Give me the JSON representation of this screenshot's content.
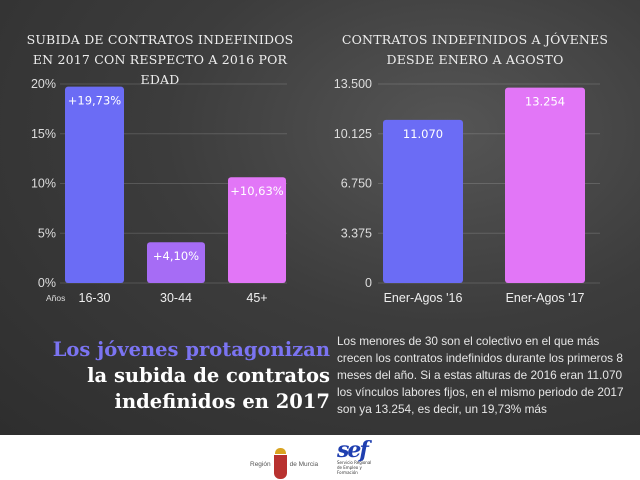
{
  "chart_data": [
    {
      "type": "bar",
      "title": "SUBIDA DE CONTRATOS INDEFINIDOS EN 2017 CON RESPECTO A 2016 POR EDAD",
      "xlabel": "Años",
      "ylabel": "",
      "categories": [
        "16-30",
        "30-44",
        "45+"
      ],
      "values": [
        19.73,
        4.1,
        10.63
      ],
      "data_labels": [
        "+19,73%",
        "+4,10%",
        "+10,63%"
      ],
      "colors": [
        "#6b6cf5",
        "#a66cf5",
        "#e276f7"
      ],
      "yticks": [
        "0%",
        "5%",
        "10%",
        "15%",
        "20%"
      ],
      "ytick_values": [
        0,
        5,
        10,
        15,
        20
      ],
      "ylim": [
        0,
        20
      ],
      "grid": true
    },
    {
      "type": "bar",
      "title": "CONTRATOS INDEFINIDOS A JÓVENES DESDE ENERO A AGOSTO",
      "xlabel": "",
      "ylabel": "",
      "categories": [
        "Ener-Agos '16",
        "Ener-Agos '17"
      ],
      "values": [
        11070,
        13254
      ],
      "data_labels": [
        "11.070",
        "13.254"
      ],
      "colors": [
        "#6b6cf5",
        "#e276f7"
      ],
      "yticks": [
        "0",
        "3.375",
        "6.750",
        "10.125",
        "13.500"
      ],
      "ytick_values": [
        0,
        3375,
        6750,
        10125,
        13500
      ],
      "ylim": [
        0,
        13500
      ],
      "grid": true
    }
  ],
  "headline": {
    "line1": "Los jóvenes protagonizan",
    "line2": "la subida de contratos",
    "line3": "indefinidos en 2017"
  },
  "body_text": "Los menores de 30 son el colectivo en el que más crecen los contratos indefinidos durante los primeros 8 meses del año. Si a estas alturas de 2016 eran 11.070 los vínculos labores fijos, en el mismo periodo de 2017 son ya 13.254, es decir, un 19,73% más",
  "footer": {
    "murcia_left": "Región",
    "murcia_right": "de Murcia",
    "sef_word": "sef",
    "sef_sub": "Servicio Regional de Empleo y Formación"
  }
}
